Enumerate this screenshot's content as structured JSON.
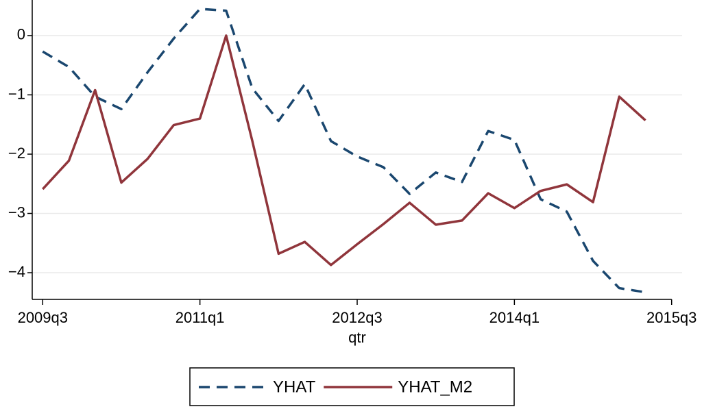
{
  "chart_data": {
    "type": "line",
    "x_label": "qtr",
    "x": [
      198,
      199,
      200,
      201,
      202,
      203,
      204,
      205,
      206,
      207,
      208,
      209,
      210,
      211,
      212,
      213,
      214,
      215,
      216,
      217,
      218,
      219,
      220,
      221
    ],
    "xlim": [
      197.6,
      222.4
    ],
    "xticks": [
      {
        "value": 198,
        "label": "2009q3"
      },
      {
        "value": 204,
        "label": "2011q1"
      },
      {
        "value": 210,
        "label": "2012q3"
      },
      {
        "value": 216,
        "label": "2014q1"
      },
      {
        "value": 222,
        "label": "2015q3"
      }
    ],
    "ylim": [
      -4.45,
      0.6
    ],
    "yticks": [
      0,
      {
        "value": -1,
        "label": "−1"
      },
      {
        "value": -2,
        "label": "−2"
      },
      {
        "value": -3,
        "label": "−3"
      },
      {
        "value": -4,
        "label": "−4"
      }
    ],
    "grid": true,
    "legend": "bottom",
    "series": [
      {
        "name": "YHAT",
        "color": "#1a476f",
        "dash": true,
        "values": [
          -0.27,
          -0.53,
          -1.03,
          -1.24,
          -0.62,
          -0.05,
          0.45,
          0.42,
          -0.89,
          -1.44,
          -0.82,
          -1.78,
          -2.04,
          -2.22,
          -2.67,
          -2.31,
          -2.47,
          -1.61,
          -1.76,
          -2.76,
          -2.97,
          -3.8,
          -4.26,
          -4.33
        ]
      },
      {
        "name": "YHAT_M2",
        "color": "#90353b",
        "dash": false,
        "values": [
          -2.59,
          -2.11,
          -0.92,
          -2.48,
          -2.08,
          -1.51,
          -1.4,
          0.0,
          -1.78,
          -3.68,
          -3.48,
          -3.87,
          -3.52,
          -3.18,
          -2.82,
          -3.19,
          -3.12,
          -2.66,
          -2.91,
          -2.62,
          -2.51,
          -2.81,
          -1.03,
          -1.43
        ]
      }
    ]
  }
}
